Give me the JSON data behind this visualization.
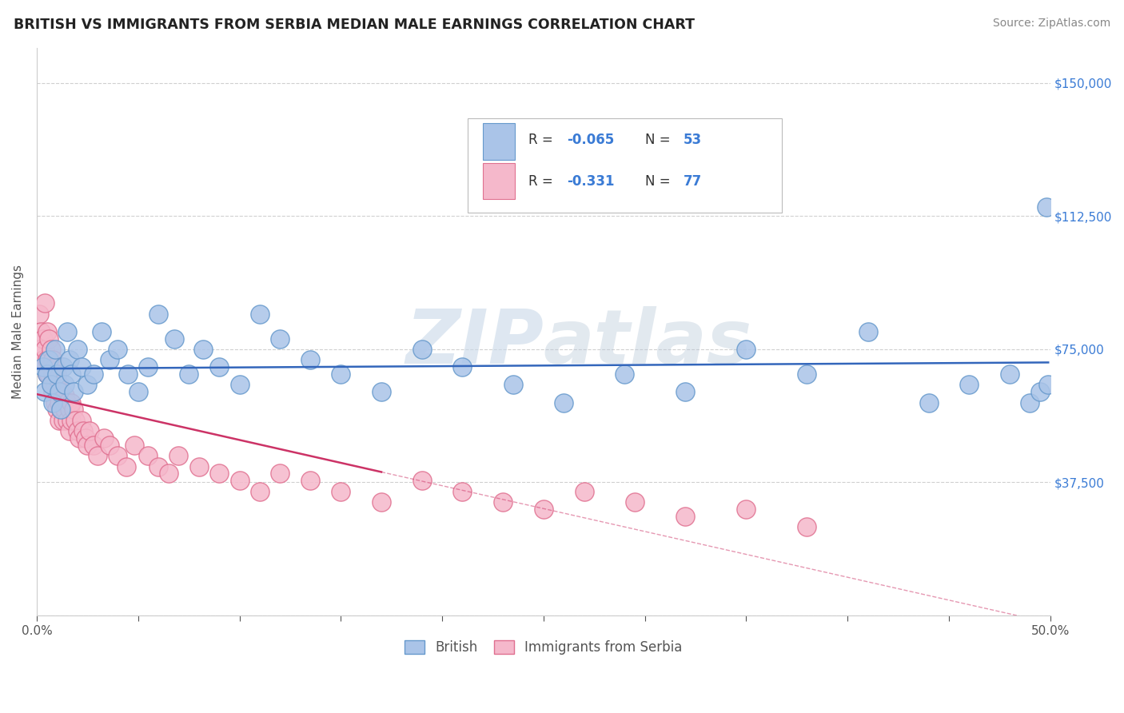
{
  "title": "BRITISH VS IMMIGRANTS FROM SERBIA MEDIAN MALE EARNINGS CORRELATION CHART",
  "source": "Source: ZipAtlas.com",
  "ylabel": "Median Male Earnings",
  "xlim": [
    0.0,
    0.5
  ],
  "ylim": [
    0,
    160000
  ],
  "yticks": [
    0,
    37500,
    75000,
    112500,
    150000
  ],
  "ytick_labels": [
    "",
    "$37,500",
    "$75,000",
    "$112,500",
    "$150,000"
  ],
  "bg_color": "#ffffff",
  "grid_color": "#d0d0d0",
  "british_color": "#aac4e8",
  "british_edge": "#6699cc",
  "serbia_color": "#f5b8cb",
  "serbia_edge": "#e07090",
  "british_R": -0.065,
  "serbia_R": -0.331,
  "british_x": [
    0.003,
    0.004,
    0.005,
    0.006,
    0.007,
    0.008,
    0.009,
    0.01,
    0.011,
    0.012,
    0.013,
    0.014,
    0.015,
    0.016,
    0.017,
    0.018,
    0.02,
    0.022,
    0.025,
    0.028,
    0.032,
    0.036,
    0.04,
    0.045,
    0.05,
    0.055,
    0.06,
    0.068,
    0.075,
    0.082,
    0.09,
    0.1,
    0.11,
    0.12,
    0.135,
    0.15,
    0.17,
    0.19,
    0.21,
    0.235,
    0.26,
    0.29,
    0.32,
    0.35,
    0.38,
    0.41,
    0.44,
    0.46,
    0.48,
    0.49,
    0.495,
    0.498,
    0.499
  ],
  "british_y": [
    70000,
    63000,
    68000,
    72000,
    65000,
    60000,
    75000,
    68000,
    63000,
    58000,
    70000,
    65000,
    80000,
    72000,
    68000,
    63000,
    75000,
    70000,
    65000,
    68000,
    80000,
    72000,
    75000,
    68000,
    63000,
    70000,
    85000,
    78000,
    68000,
    75000,
    70000,
    65000,
    85000,
    78000,
    72000,
    68000,
    63000,
    75000,
    70000,
    65000,
    60000,
    68000,
    63000,
    75000,
    68000,
    80000,
    60000,
    65000,
    68000,
    60000,
    63000,
    115000,
    65000
  ],
  "serbia_x": [
    0.001,
    0.002,
    0.002,
    0.003,
    0.003,
    0.004,
    0.004,
    0.005,
    0.005,
    0.005,
    0.006,
    0.006,
    0.006,
    0.007,
    0.007,
    0.007,
    0.008,
    0.008,
    0.008,
    0.009,
    0.009,
    0.009,
    0.01,
    0.01,
    0.01,
    0.011,
    0.011,
    0.011,
    0.012,
    0.012,
    0.013,
    0.013,
    0.014,
    0.014,
    0.015,
    0.015,
    0.016,
    0.016,
    0.017,
    0.017,
    0.018,
    0.019,
    0.02,
    0.021,
    0.022,
    0.023,
    0.024,
    0.025,
    0.026,
    0.028,
    0.03,
    0.033,
    0.036,
    0.04,
    0.044,
    0.048,
    0.055,
    0.06,
    0.065,
    0.07,
    0.08,
    0.09,
    0.1,
    0.11,
    0.12,
    0.135,
    0.15,
    0.17,
    0.19,
    0.21,
    0.23,
    0.25,
    0.27,
    0.295,
    0.32,
    0.35,
    0.38
  ],
  "serbia_y": [
    85000,
    80000,
    75000,
    78000,
    72000,
    88000,
    75000,
    80000,
    72000,
    68000,
    78000,
    72000,
    68000,
    75000,
    70000,
    65000,
    72000,
    68000,
    63000,
    70000,
    65000,
    60000,
    68000,
    63000,
    58000,
    65000,
    60000,
    55000,
    63000,
    58000,
    60000,
    55000,
    62000,
    58000,
    55000,
    60000,
    58000,
    52000,
    60000,
    55000,
    58000,
    55000,
    52000,
    50000,
    55000,
    52000,
    50000,
    48000,
    52000,
    48000,
    45000,
    50000,
    48000,
    45000,
    42000,
    48000,
    45000,
    42000,
    40000,
    45000,
    42000,
    40000,
    38000,
    35000,
    40000,
    38000,
    35000,
    32000,
    38000,
    35000,
    32000,
    30000,
    35000,
    32000,
    28000,
    30000,
    25000
  ]
}
